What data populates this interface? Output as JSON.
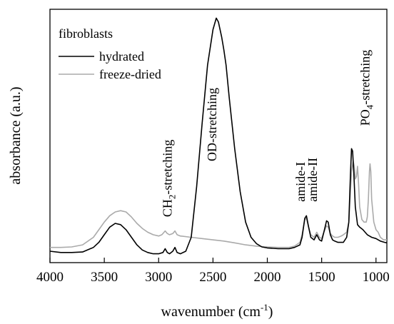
{
  "chart_data": {
    "type": "line",
    "xlabel_main": "wavenumber (cm",
    "xlabel_sup": "-1",
    "xlabel_end": ")",
    "ylabel": "absorbance (a.u.)",
    "xlim": [
      4000,
      900
    ],
    "ylim": [
      0,
      1.0
    ],
    "x_reversed": true,
    "y_ticks_shown": false,
    "xticks": [
      4000,
      3500,
      3000,
      2500,
      2000,
      1500,
      1000
    ],
    "xtick_labels": [
      "4000",
      "3500",
      "3000",
      "2500",
      "2000",
      "1500",
      "1000"
    ],
    "legend": {
      "title": "fibroblasts",
      "placement": "top-left"
    },
    "series": [
      {
        "name": "hydrated",
        "color": "#000000",
        "points": [
          [
            4000,
            0.045
          ],
          [
            3900,
            0.04
          ],
          [
            3800,
            0.04
          ],
          [
            3700,
            0.042
          ],
          [
            3600,
            0.06
          ],
          [
            3550,
            0.08
          ],
          [
            3500,
            0.11
          ],
          [
            3450,
            0.14
          ],
          [
            3400,
            0.155
          ],
          [
            3350,
            0.15
          ],
          [
            3300,
            0.13
          ],
          [
            3250,
            0.1
          ],
          [
            3200,
            0.07
          ],
          [
            3150,
            0.05
          ],
          [
            3100,
            0.04
          ],
          [
            3050,
            0.035
          ],
          [
            3000,
            0.035
          ],
          [
            2960,
            0.04
          ],
          [
            2940,
            0.055
          ],
          [
            2920,
            0.04
          ],
          [
            2900,
            0.035
          ],
          [
            2870,
            0.045
          ],
          [
            2850,
            0.06
          ],
          [
            2830,
            0.04
          ],
          [
            2800,
            0.035
          ],
          [
            2750,
            0.045
          ],
          [
            2700,
            0.1
          ],
          [
            2650,
            0.3
          ],
          [
            2600,
            0.55
          ],
          [
            2550,
            0.78
          ],
          [
            2500,
            0.92
          ],
          [
            2470,
            0.965
          ],
          [
            2450,
            0.95
          ],
          [
            2420,
            0.89
          ],
          [
            2400,
            0.84
          ],
          [
            2380,
            0.78
          ],
          [
            2350,
            0.65
          ],
          [
            2300,
            0.45
          ],
          [
            2250,
            0.28
          ],
          [
            2200,
            0.16
          ],
          [
            2150,
            0.1
          ],
          [
            2100,
            0.075
          ],
          [
            2050,
            0.062
          ],
          [
            2000,
            0.058
          ],
          [
            1900,
            0.055
          ],
          [
            1800,
            0.055
          ],
          [
            1750,
            0.06
          ],
          [
            1700,
            0.07
          ],
          [
            1680,
            0.1
          ],
          [
            1655,
            0.175
          ],
          [
            1640,
            0.185
          ],
          [
            1620,
            0.14
          ],
          [
            1600,
            0.1
          ],
          [
            1570,
            0.09
          ],
          [
            1545,
            0.11
          ],
          [
            1520,
            0.09
          ],
          [
            1500,
            0.085
          ],
          [
            1480,
            0.12
          ],
          [
            1455,
            0.165
          ],
          [
            1440,
            0.16
          ],
          [
            1420,
            0.11
          ],
          [
            1400,
            0.09
          ],
          [
            1380,
            0.085
          ],
          [
            1350,
            0.08
          ],
          [
            1300,
            0.08
          ],
          [
            1270,
            0.1
          ],
          [
            1250,
            0.16
          ],
          [
            1235,
            0.35
          ],
          [
            1225,
            0.45
          ],
          [
            1215,
            0.44
          ],
          [
            1205,
            0.36
          ],
          [
            1190,
            0.22
          ],
          [
            1170,
            0.15
          ],
          [
            1150,
            0.14
          ],
          [
            1120,
            0.13
          ],
          [
            1100,
            0.12
          ],
          [
            1080,
            0.11
          ],
          [
            1060,
            0.105
          ],
          [
            1040,
            0.1
          ],
          [
            1000,
            0.095
          ],
          [
            960,
            0.085
          ],
          [
            920,
            0.08
          ],
          [
            900,
            0.078
          ]
        ]
      },
      {
        "name": "freeze-dried",
        "color": "#aaaaaa",
        "points": [
          [
            4000,
            0.06
          ],
          [
            3900,
            0.06
          ],
          [
            3800,
            0.062
          ],
          [
            3700,
            0.07
          ],
          [
            3600,
            0.1
          ],
          [
            3550,
            0.13
          ],
          [
            3500,
            0.16
          ],
          [
            3450,
            0.185
          ],
          [
            3400,
            0.2
          ],
          [
            3350,
            0.205
          ],
          [
            3300,
            0.2
          ],
          [
            3250,
            0.18
          ],
          [
            3200,
            0.155
          ],
          [
            3150,
            0.135
          ],
          [
            3100,
            0.12
          ],
          [
            3050,
            0.11
          ],
          [
            3000,
            0.105
          ],
          [
            2970,
            0.11
          ],
          [
            2940,
            0.125
          ],
          [
            2920,
            0.115
          ],
          [
            2900,
            0.11
          ],
          [
            2870,
            0.115
          ],
          [
            2850,
            0.125
          ],
          [
            2830,
            0.11
          ],
          [
            2800,
            0.105
          ],
          [
            2700,
            0.1
          ],
          [
            2600,
            0.095
          ],
          [
            2500,
            0.09
          ],
          [
            2400,
            0.085
          ],
          [
            2300,
            0.078
          ],
          [
            2200,
            0.07
          ],
          [
            2100,
            0.065
          ],
          [
            2000,
            0.062
          ],
          [
            1900,
            0.06
          ],
          [
            1800,
            0.06
          ],
          [
            1750,
            0.065
          ],
          [
            1700,
            0.08
          ],
          [
            1680,
            0.11
          ],
          [
            1655,
            0.17
          ],
          [
            1640,
            0.175
          ],
          [
            1620,
            0.14
          ],
          [
            1600,
            0.11
          ],
          [
            1570,
            0.1
          ],
          [
            1545,
            0.12
          ],
          [
            1520,
            0.1
          ],
          [
            1500,
            0.095
          ],
          [
            1480,
            0.12
          ],
          [
            1455,
            0.145
          ],
          [
            1440,
            0.14
          ],
          [
            1420,
            0.115
          ],
          [
            1400,
            0.105
          ],
          [
            1380,
            0.1
          ],
          [
            1350,
            0.1
          ],
          [
            1320,
            0.105
          ],
          [
            1300,
            0.11
          ],
          [
            1270,
            0.12
          ],
          [
            1250,
            0.16
          ],
          [
            1235,
            0.28
          ],
          [
            1225,
            0.36
          ],
          [
            1210,
            0.4
          ],
          [
            1200,
            0.38
          ],
          [
            1190,
            0.33
          ],
          [
            1180,
            0.34
          ],
          [
            1170,
            0.38
          ],
          [
            1160,
            0.31
          ],
          [
            1150,
            0.22
          ],
          [
            1130,
            0.17
          ],
          [
            1110,
            0.16
          ],
          [
            1090,
            0.16
          ],
          [
            1080,
            0.18
          ],
          [
            1070,
            0.25
          ],
          [
            1060,
            0.36
          ],
          [
            1055,
            0.39
          ],
          [
            1048,
            0.36
          ],
          [
            1040,
            0.25
          ],
          [
            1020,
            0.16
          ],
          [
            1000,
            0.13
          ],
          [
            980,
            0.12
          ],
          [
            960,
            0.1
          ],
          [
            930,
            0.09
          ],
          [
            900,
            0.09
          ]
        ]
      }
    ],
    "annotations": [
      {
        "id": "ch2",
        "text_main": "CH",
        "sub": "2",
        "text_end": "-stretching",
        "x": 2880,
        "y": 0.18
      },
      {
        "id": "od",
        "text_main": "OD-stretching",
        "x": 2470,
        "y": 0.4
      },
      {
        "id": "amide1",
        "text_main": "amide-I",
        "x": 1655,
        "y": 0.24
      },
      {
        "id": "amide2",
        "text_main": "amide-II",
        "x": 1545,
        "y": 0.24
      },
      {
        "id": "po4",
        "text_main": "PO",
        "sub": "4",
        "text_end": "-stretching",
        "x": 1060,
        "y": 0.54
      }
    ]
  }
}
